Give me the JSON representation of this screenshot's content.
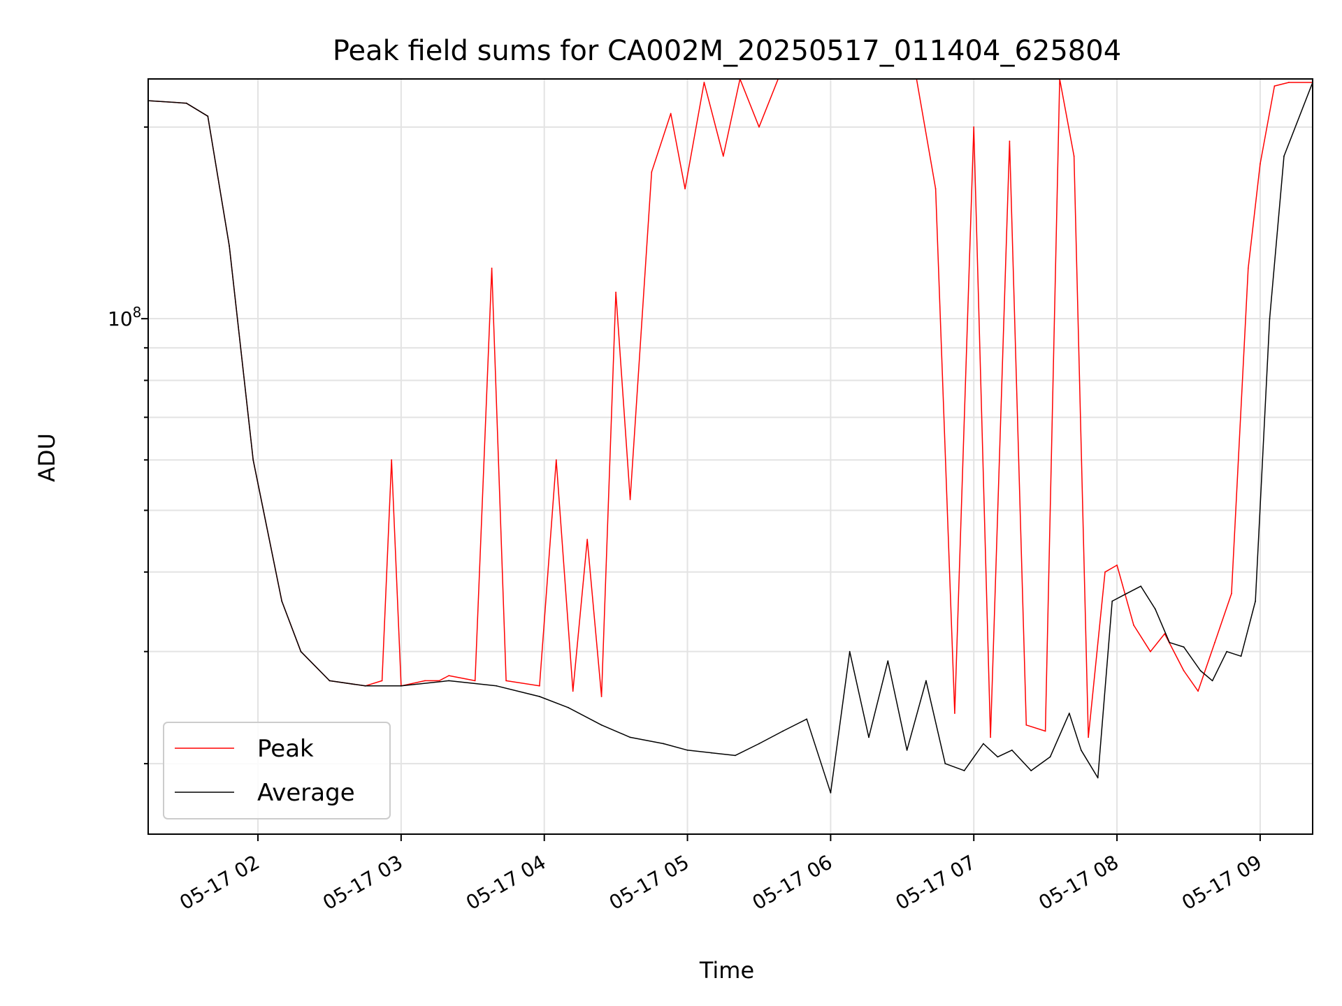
{
  "chart_data": {
    "type": "line",
    "title": "Peak field sums for CA002M_20250517_011404_625804",
    "xlabel": "Time",
    "ylabel": "ADU",
    "y_scale": "log",
    "ylim": [
      15500000,
      238000000
    ],
    "xlim": [
      "2025-05-17 01:14",
      "2025-05-17 09:22"
    ],
    "x_ticks": [
      "05-17 02",
      "05-17 03",
      "05-17 04",
      "05-17 05",
      "05-17 06",
      "05-17 07",
      "05-17 08",
      "05-17 09"
    ],
    "x_tick_values": [
      "2025-05-17 02:00",
      "2025-05-17 03:00",
      "2025-05-17 04:00",
      "2025-05-17 05:00",
      "2025-05-17 06:00",
      "2025-05-17 07:00",
      "2025-05-17 08:00",
      "2025-05-17 09:00"
    ],
    "y_tick_major_labels": [
      {
        "base": "10",
        "exp": "8",
        "value": 100000000
      }
    ],
    "grid": true,
    "legend_position": "lower-left",
    "series": [
      {
        "name": "Peak",
        "color": "#ff0000",
        "x": [
          "2025-05-17 01:14",
          "2025-05-17 01:30",
          "2025-05-17 01:39",
          "2025-05-17 01:48",
          "2025-05-17 01:58",
          "2025-05-17 02:10",
          "2025-05-17 02:18",
          "2025-05-17 02:30",
          "2025-05-17 02:45",
          "2025-05-17 02:52",
          "2025-05-17 02:56",
          "2025-05-17 03:00",
          "2025-05-17 03:10",
          "2025-05-17 03:16",
          "2025-05-17 03:20",
          "2025-05-17 03:31",
          "2025-05-17 03:38",
          "2025-05-17 03:44",
          "2025-05-17 03:58",
          "2025-05-17 04:05",
          "2025-05-17 04:12",
          "2025-05-17 04:18",
          "2025-05-17 04:24",
          "2025-05-17 04:30",
          "2025-05-17 04:36",
          "2025-05-17 04:45",
          "2025-05-17 04:53",
          "2025-05-17 04:59",
          "2025-05-17 05:07",
          "2025-05-17 05:15",
          "2025-05-17 05:22",
          "2025-05-17 05:30",
          "2025-05-17 05:38",
          "2025-05-17 05:45",
          "2025-05-17 05:52",
          "2025-05-17 05:58",
          "2025-05-17 06:05",
          "2025-05-17 06:12",
          "2025-05-17 06:20",
          "2025-05-17 06:28",
          "2025-05-17 06:36",
          "2025-05-17 06:44",
          "2025-05-17 06:52",
          "2025-05-17 07:00",
          "2025-05-17 07:07",
          "2025-05-17 07:15",
          "2025-05-17 07:22",
          "2025-05-17 07:30",
          "2025-05-17 07:36",
          "2025-05-17 07:42",
          "2025-05-17 07:48",
          "2025-05-17 07:55",
          "2025-05-17 08:00",
          "2025-05-17 08:07",
          "2025-05-17 08:14",
          "2025-05-17 08:20",
          "2025-05-17 08:28",
          "2025-05-17 08:34",
          "2025-05-17 08:41",
          "2025-05-17 08:48",
          "2025-05-17 08:55",
          "2025-05-17 09:00",
          "2025-05-17 09:06",
          "2025-05-17 09:12",
          "2025-05-17 09:22"
        ],
        "y": [
          220000000,
          218000000,
          208000000,
          130000000,
          60000000,
          36000000,
          30000000,
          27000000,
          26500000,
          27000000,
          60000000,
          26500000,
          27000000,
          27000000,
          27500000,
          27000000,
          120000000,
          27000000,
          26500000,
          60000000,
          26000000,
          45000000,
          25500000,
          110000000,
          52000000,
          170000000,
          210000000,
          160000000,
          235000000,
          180000000,
          238000000,
          200000000,
          238000000,
          238000000,
          238000000,
          238000000,
          238000000,
          238000000,
          238000000,
          238000000,
          238000000,
          160000000,
          24000000,
          200000000,
          22000000,
          190000000,
          23000000,
          22500000,
          238000000,
          180000000,
          22000000,
          40000000,
          41000000,
          33000000,
          30000000,
          32000000,
          28000000,
          26000000,
          31000000,
          37000000,
          120000000,
          175000000,
          232000000,
          235000000,
          235000000
        ]
      },
      {
        "name": "Average",
        "color": "#000000",
        "x": [
          "2025-05-17 01:14",
          "2025-05-17 01:30",
          "2025-05-17 01:39",
          "2025-05-17 01:48",
          "2025-05-17 01:58",
          "2025-05-17 02:10",
          "2025-05-17 02:18",
          "2025-05-17 02:30",
          "2025-05-17 02:45",
          "2025-05-17 03:00",
          "2025-05-17 03:20",
          "2025-05-17 03:40",
          "2025-05-17 03:58",
          "2025-05-17 04:10",
          "2025-05-17 04:24",
          "2025-05-17 04:36",
          "2025-05-17 04:50",
          "2025-05-17 05:00",
          "2025-05-17 05:10",
          "2025-05-17 05:20",
          "2025-05-17 05:30",
          "2025-05-17 05:40",
          "2025-05-17 05:50",
          "2025-05-17 06:00",
          "2025-05-17 06:08",
          "2025-05-17 06:16",
          "2025-05-17 06:24",
          "2025-05-17 06:32",
          "2025-05-17 06:40",
          "2025-05-17 06:48",
          "2025-05-17 06:56",
          "2025-05-17 07:04",
          "2025-05-17 07:10",
          "2025-05-17 07:16",
          "2025-05-17 07:24",
          "2025-05-17 07:32",
          "2025-05-17 07:40",
          "2025-05-17 07:45",
          "2025-05-17 07:52",
          "2025-05-17 07:58",
          "2025-05-17 08:04",
          "2025-05-17 08:10",
          "2025-05-17 08:16",
          "2025-05-17 08:22",
          "2025-05-17 08:28",
          "2025-05-17 08:35",
          "2025-05-17 08:40",
          "2025-05-17 08:46",
          "2025-05-17 08:52",
          "2025-05-17 08:58",
          "2025-05-17 09:04",
          "2025-05-17 09:10",
          "2025-05-17 09:22"
        ],
        "y": [
          220000000,
          218000000,
          208000000,
          130000000,
          60000000,
          36000000,
          30000000,
          27000000,
          26500000,
          26500000,
          27000000,
          26500000,
          25500000,
          24500000,
          23000000,
          22000000,
          21500000,
          21000000,
          20800000,
          20600000,
          21500000,
          22500000,
          23500000,
          18000000,
          30000000,
          22000000,
          29000000,
          21000000,
          27000000,
          20000000,
          19500000,
          21500000,
          20500000,
          21000000,
          19500000,
          20500000,
          24000000,
          21000000,
          19000000,
          36000000,
          37000000,
          38000000,
          35000000,
          31000000,
          30500000,
          28000000,
          27000000,
          30000000,
          29500000,
          36000000,
          100000000,
          180000000,
          235000000
        ]
      }
    ]
  }
}
